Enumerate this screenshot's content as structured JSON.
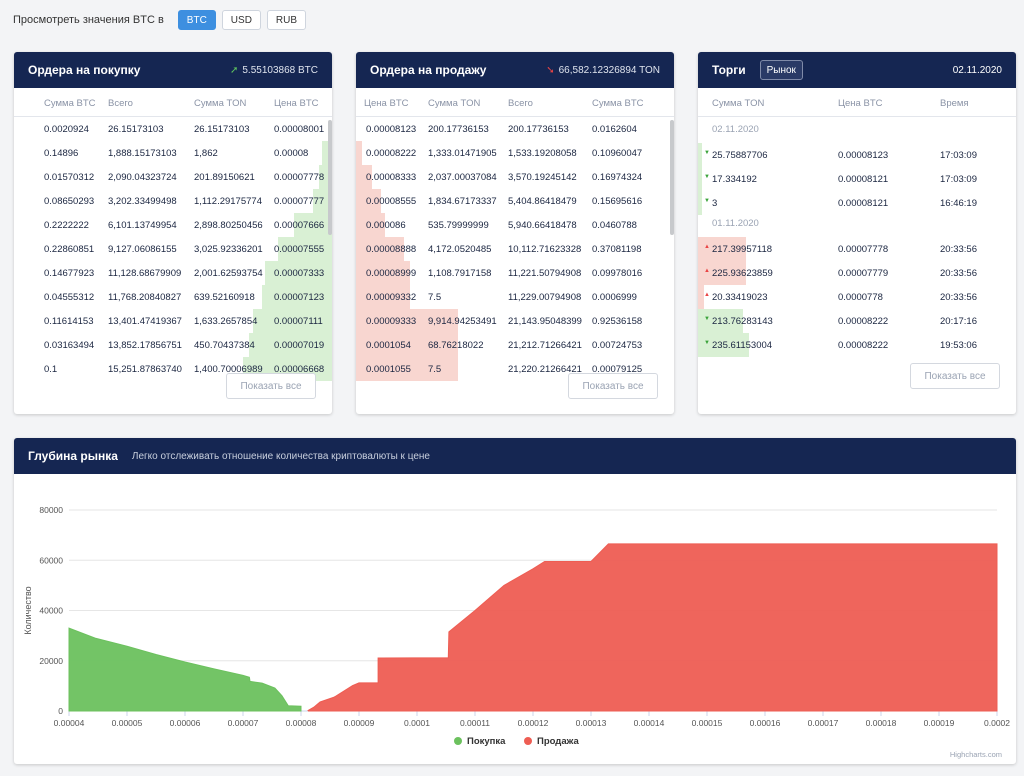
{
  "topbar": {
    "label": "Просмотреть значения BTC в",
    "currencies": [
      {
        "label": "BTC",
        "active": true
      },
      {
        "label": "USD",
        "active": false
      },
      {
        "label": "RUB",
        "active": false
      }
    ]
  },
  "buy_panel": {
    "title": "Ордера на покупку",
    "total": "5.55103868 BTC",
    "columns": [
      "Сумма BTC",
      "Всего",
      "Сумма TON",
      "Цена BTC"
    ],
    "rows": [
      {
        "c": [
          "0.0020924",
          "26.15173103",
          "26.15173103",
          "0.00008001"
        ],
        "depth": 0.0
      },
      {
        "c": [
          "0.14896",
          "1,888.15173103",
          "1,862",
          "0.00008"
        ],
        "depth": 0.03
      },
      {
        "c": [
          "0.01570312",
          "2,090.04323724",
          "201.89150621",
          "0.00007778"
        ],
        "depth": 0.04
      },
      {
        "c": [
          "0.08650293",
          "3,202.33499498",
          "1,112.29175774",
          "0.00007777"
        ],
        "depth": 0.06
      },
      {
        "c": [
          "0.2222222",
          "6,101.13749954",
          "2,898.80250456",
          "0.00007666"
        ],
        "depth": 0.12
      },
      {
        "c": [
          "0.22860851",
          "9,127.06086155",
          "3,025.92336201",
          "0.00007555"
        ],
        "depth": 0.17
      },
      {
        "c": [
          "0.14677923",
          "11,128.68679909",
          "2,001.62593754",
          "0.00007333"
        ],
        "depth": 0.21
      },
      {
        "c": [
          "0.04555312",
          "11,768.20840827",
          "639.52160918",
          "0.00007123"
        ],
        "depth": 0.22
      },
      {
        "c": [
          "0.11614153",
          "13,401.47419367",
          "1,633.2657854",
          "0.00007111"
        ],
        "depth": 0.25
      },
      {
        "c": [
          "0.03163494",
          "13,852.17856751",
          "450.70437384",
          "0.00007019"
        ],
        "depth": 0.26
      },
      {
        "c": [
          "0.1",
          "15,251.87863740",
          "1,400.70006989",
          "0.00006668"
        ],
        "depth": 0.28
      }
    ],
    "show_all": "Показать все"
  },
  "sell_panel": {
    "title": "Ордера на продажу",
    "total": "66,582.12326894 TON",
    "columns": [
      "Цена BTC",
      "Сумма TON",
      "Всего",
      "Сумма BTC"
    ],
    "rows": [
      {
        "c": [
          "0.00008123",
          "200.17736153",
          "200.17736153",
          "0.0162604"
        ],
        "depth": 0.0
      },
      {
        "c": [
          "0.00008222",
          "1,333.01471905",
          "1,533.19208058",
          "0.10960047"
        ],
        "depth": 0.02
      },
      {
        "c": [
          "0.00008333",
          "2,037.00037084",
          "3,570.19245142",
          "0.16974324"
        ],
        "depth": 0.05
      },
      {
        "c": [
          "0.00008555",
          "1,834.67173337",
          "5,404.86418479",
          "0.15695616"
        ],
        "depth": 0.08
      },
      {
        "c": [
          "0.000086",
          "535.79999999",
          "5,940.66418478",
          "0.0460788"
        ],
        "depth": 0.09
      },
      {
        "c": [
          "0.00008888",
          "4,172.0520485",
          "10,112.71623328",
          "0.37081198"
        ],
        "depth": 0.15
      },
      {
        "c": [
          "0.00008999",
          "1,108.7917158",
          "11,221.50794908",
          "0.09978016"
        ],
        "depth": 0.17
      },
      {
        "c": [
          "0.00009332",
          "7.5",
          "11,229.00794908",
          "0.0006999"
        ],
        "depth": 0.17
      },
      {
        "c": [
          "0.00009333",
          "9,914.94253491",
          "21,143.95048399",
          "0.92536158"
        ],
        "depth": 0.32
      },
      {
        "c": [
          "0.0001054",
          "68.76218022",
          "21,212.71266421",
          "0.00724753"
        ],
        "depth": 0.32
      },
      {
        "c": [
          "0.0001055",
          "7.5",
          "21,220.21266421",
          "0.00079125"
        ],
        "depth": 0.32
      }
    ],
    "show_all": "Показать все"
  },
  "trades_panel": {
    "title": "Торги",
    "tab": "Рынок",
    "date": "02.11.2020",
    "columns": [
      "Сумма TON",
      "Цена BTC",
      "Время"
    ],
    "groups": [
      {
        "date": "02.11.2020",
        "rows": [
          {
            "c": [
              "25.75887706",
              "0.00008123",
              "17:03:09"
            ],
            "side": "buy",
            "depth": 0.01
          },
          {
            "c": [
              "17.334192",
              "0.00008121",
              "17:03:09"
            ],
            "side": "buy",
            "depth": 0.01
          },
          {
            "c": [
              "3",
              "0.00008121",
              "16:46:19"
            ],
            "side": "buy",
            "depth": 0.0
          }
        ]
      },
      {
        "date": "01.11.2020",
        "rows": [
          {
            "c": [
              "217.39957118",
              "0.00007778",
              "20:33:56"
            ],
            "side": "sell",
            "depth": 0.15
          },
          {
            "c": [
              "225.93623859",
              "0.00007779",
              "20:33:56"
            ],
            "side": "sell",
            "depth": 0.15
          },
          {
            "c": [
              "20.33419023",
              "0.0000778",
              "20:33:56"
            ],
            "side": "sell",
            "depth": 0.02
          },
          {
            "c": [
              "213.76283143",
              "0.00008222",
              "20:17:16"
            ],
            "side": "buy",
            "depth": 0.14
          },
          {
            "c": [
              "235.61153004",
              "0.00008222",
              "19:53:06"
            ],
            "side": "buy",
            "depth": 0.16
          }
        ]
      }
    ],
    "show_all": "Показать все"
  },
  "depth_chart": {
    "title": "Глубина рынка",
    "subtitle": "Легко отслеживать отношение количества криптовалюты к цене",
    "credits": "Highcharts.com",
    "colors": {
      "buy": "#6cc15e",
      "sell": "#ee5d53",
      "grid": "#e6e6e6"
    }
  },
  "chart_data": {
    "type": "area",
    "title": "",
    "xlabel": "",
    "ylabel": "Количество",
    "xlim": [
      4e-05,
      0.0002
    ],
    "ylim": [
      0,
      80000
    ],
    "x_ticks": [
      "0.00004",
      "0.00005",
      "0.00006",
      "0.00007",
      "0.00008",
      "0.00009",
      "0.0001",
      "0.00011",
      "0.00012",
      "0.00013",
      "0.00014",
      "0.00015",
      "0.00016",
      "0.00017",
      "0.00018",
      "0.00019",
      "0.0002"
    ],
    "y_ticks": [
      "0",
      "20000",
      "40000",
      "60000",
      "80000"
    ],
    "legend": "bottom-center",
    "grid": true,
    "series": [
      {
        "name": "Покупка",
        "points": [
          [
            4e-05,
            33000
          ],
          [
            4.45e-05,
            29000
          ],
          [
            5e-05,
            25800
          ],
          [
            5.5e-05,
            22500
          ],
          [
            6e-05,
            19500
          ],
          [
            6.5e-05,
            16800
          ],
          [
            7e-05,
            14200
          ],
          [
            7.11e-05,
            13400
          ],
          [
            7.12e-05,
            11800
          ],
          [
            7.33e-05,
            11100
          ],
          [
            7.55e-05,
            9100
          ],
          [
            7.67e-05,
            6100
          ],
          [
            7.78e-05,
            2100
          ],
          [
            8e-05,
            1900
          ],
          [
            8e-05,
            0
          ]
        ]
      },
      {
        "name": "Продажа",
        "points": [
          [
            8.12e-05,
            0
          ],
          [
            8.12e-05,
            200
          ],
          [
            8.22e-05,
            1500
          ],
          [
            8.33e-05,
            3600
          ],
          [
            8.56e-05,
            5400
          ],
          [
            8.6e-05,
            5900
          ],
          [
            8.89e-05,
            10100
          ],
          [
            9e-05,
            11200
          ],
          [
            9.33e-05,
            11200
          ],
          [
            9.33e-05,
            21100
          ],
          [
            0.0001054,
            21200
          ],
          [
            0.0001055,
            31500
          ],
          [
            0.00011,
            40000
          ],
          [
            0.000115,
            50000
          ],
          [
            0.00012,
            56600
          ],
          [
            0.000122,
            59500
          ],
          [
            0.00013,
            59500
          ],
          [
            0.000133,
            66500
          ],
          [
            0.0002,
            66500
          ],
          [
            0.0002,
            0
          ]
        ]
      }
    ]
  }
}
